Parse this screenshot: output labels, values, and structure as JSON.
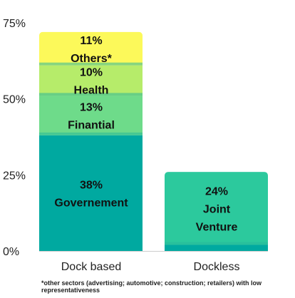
{
  "chart_data": {
    "type": "bar",
    "stacked": true,
    "categories": [
      "Dock based",
      "Dockless"
    ],
    "ylim": [
      0,
      75
    ],
    "yticks": [
      "0%",
      "25%",
      "50%",
      "75%"
    ],
    "ytick_values": [
      0,
      25,
      50,
      75
    ],
    "grid": false,
    "bars": [
      {
        "category": "Dock based",
        "segments": [
          {
            "label_lines": [
              "38%",
              "Governement"
            ],
            "value": 38,
            "color": "#00a9a0"
          },
          {
            "label_lines": [
              "13%",
              "Finantial"
            ],
            "value": 13,
            "color": "#6edb8a"
          },
          {
            "label_lines": [
              "10%",
              "Health"
            ],
            "value": 10,
            "color": "#b6ec6a"
          },
          {
            "label_lines": [
              "11%",
              "Others*"
            ],
            "value": 11,
            "color": "#fcf95a"
          }
        ]
      },
      {
        "category": "Dockless",
        "segments": [
          {
            "label_lines": [
              "",
              ""
            ],
            "value": 2,
            "color": "#00a9a0"
          },
          {
            "label_lines": [
              "24%",
              "Joint",
              "Venture"
            ],
            "value": 24,
            "color": "#2cc99d"
          }
        ]
      }
    ]
  },
  "footnote": "*other sectors (advertising; automotive; construction; retailers) with low representativeness"
}
